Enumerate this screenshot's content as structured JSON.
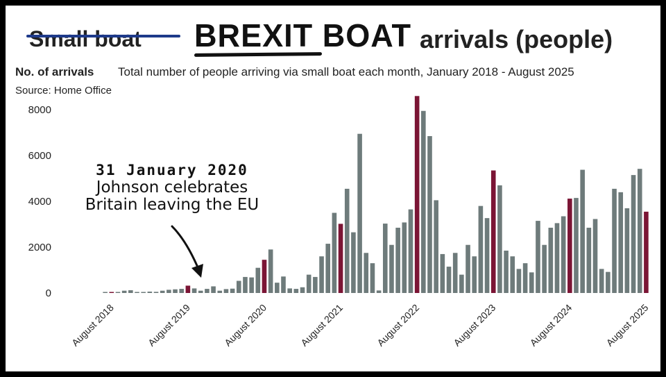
{
  "title": {
    "struck": "Small boat",
    "highlight": "BREXIT BOAT",
    "rest": "arrivals (people)"
  },
  "subtitle": {
    "label": "No. of arrivals",
    "description": "Total number of people arriving via small boat each month, January 2018 - August 2025"
  },
  "source": "Source: Home Office",
  "annotation": {
    "date": "31 January 2020",
    "line1": "Johnson celebrates",
    "line2": "Britain leaving the EU"
  },
  "colors": {
    "bar": "#6e7b7b",
    "highlight": "#7b1535",
    "strike": "#1e3a8a"
  },
  "chart_data": {
    "type": "bar",
    "x_start": "2018-01",
    "x_end": "2025-08",
    "highlighted_month": "August",
    "ylim": [
      0,
      8700
    ],
    "yticks": [
      0,
      2000,
      4000,
      6000,
      8000
    ],
    "xtick_labels": [
      "August 2018",
      "August 2019",
      "August 2020",
      "August 2021",
      "August 2022",
      "August 2023",
      "August 2024",
      "August 2025"
    ],
    "values": [
      0,
      0,
      0,
      0,
      0,
      0,
      10,
      20,
      40,
      100,
      120,
      40,
      40,
      60,
      50,
      100,
      140,
      160,
      180,
      320,
      200,
      100,
      180,
      290,
      100,
      170,
      190,
      530,
      700,
      680,
      1100,
      1450,
      1900,
      450,
      720,
      200,
      180,
      250,
      800,
      700,
      1600,
      2150,
      3500,
      3020,
      4550,
      2650,
      6950,
      1750,
      1300,
      110,
      3030,
      2100,
      2850,
      3080,
      3650,
      8600,
      7950,
      6850,
      4050,
      1700,
      1150,
      1750,
      800,
      2100,
      1600,
      3800,
      3270,
      5350,
      4700,
      1850,
      1600,
      1050,
      1300,
      900,
      3150,
      2100,
      2850,
      3050,
      3350,
      4120,
      4150,
      5380,
      2850,
      3230,
      1050,
      920,
      4550,
      4400,
      3700,
      5150,
      5420,
      3550
    ]
  }
}
